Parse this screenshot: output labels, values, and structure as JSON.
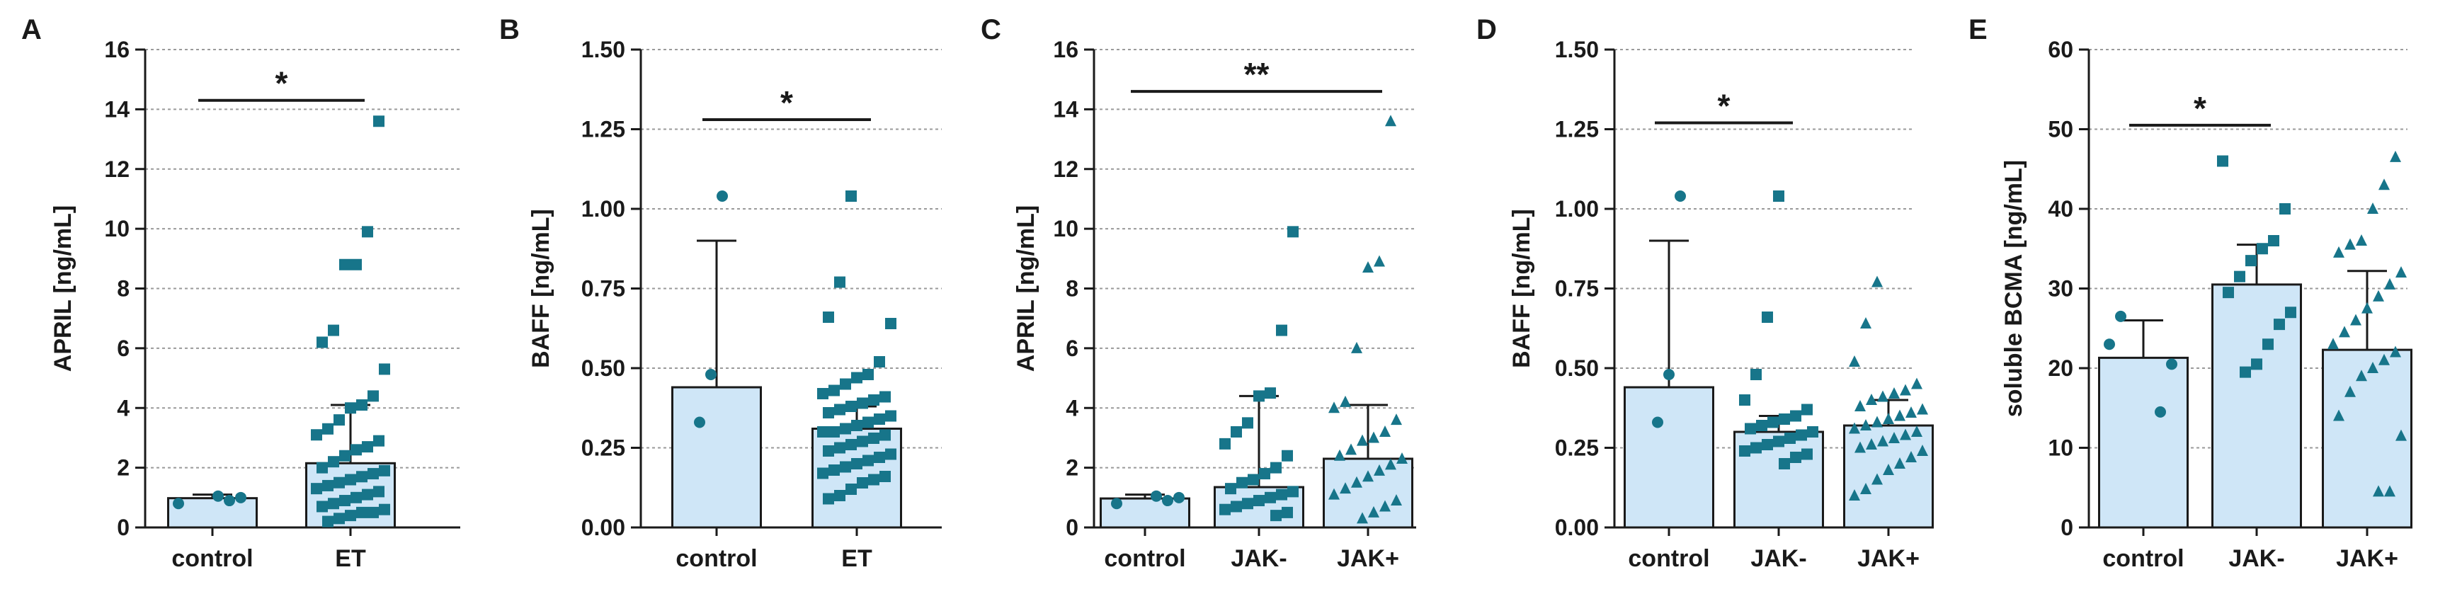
{
  "chart_data": [
    {
      "type": "bar",
      "panel": "A",
      "ylabel": "APRIL [ng/mL]",
      "ylim": [
        0,
        16
      ],
      "yticks": [
        0,
        2,
        4,
        6,
        8,
        10,
        12,
        14,
        16
      ],
      "ytick_labels": [
        "0",
        "2",
        "4",
        "6",
        "8",
        "10",
        "12",
        "14",
        "16"
      ],
      "grid": "dashed horizontal",
      "categories": [
        "control",
        "ET"
      ],
      "values": [
        0.98,
        2.15
      ],
      "error_upper": [
        1.1,
        4.1
      ],
      "markers": [
        "circle",
        "square"
      ],
      "points": [
        [
          0.8,
          1.0,
          0.9,
          1.05
        ],
        [
          13.6,
          9.9,
          8.8,
          8.8,
          6.6,
          6.2,
          5.3,
          4.4,
          4.1,
          4.0,
          3.6,
          3.3,
          3.1,
          2.9,
          2.7,
          2.6,
          2.4,
          2.2,
          2.0,
          1.9,
          1.8,
          1.7,
          1.6,
          1.5,
          1.4,
          1.3,
          1.2,
          1.1,
          1.0,
          0.9,
          0.8,
          0.7,
          0.6,
          0.5,
          0.5,
          0.4,
          0.3,
          0.2
        ]
      ],
      "significance": [
        {
          "label": "*",
          "from": 0,
          "to": 1,
          "y": 14.3
        }
      ]
    },
    {
      "type": "bar",
      "panel": "B",
      "ylabel": "BAFF [ng/mL]",
      "ylim": [
        0,
        1.5
      ],
      "yticks": [
        0,
        0.25,
        0.5,
        0.75,
        1.0,
        1.25,
        1.5
      ],
      "ytick_labels": [
        "0.00",
        "0.25",
        "0.50",
        "0.75",
        "1.00",
        "1.25",
        "1.50"
      ],
      "grid": "dashed horizontal",
      "categories": [
        "control",
        "ET"
      ],
      "values": [
        0.44,
        0.31
      ],
      "error_upper": [
        0.9,
        0.38
      ],
      "markers": [
        "circle",
        "square"
      ],
      "points": [
        [
          1.04,
          0.48,
          0.33
        ],
        [
          1.04,
          0.77,
          0.66,
          0.64,
          0.52,
          0.48,
          0.47,
          0.45,
          0.43,
          0.42,
          0.41,
          0.4,
          0.39,
          0.38,
          0.37,
          0.36,
          0.35,
          0.34,
          0.33,
          0.32,
          0.31,
          0.3,
          0.3,
          0.29,
          0.28,
          0.27,
          0.26,
          0.25,
          0.24,
          0.23,
          0.22,
          0.21,
          0.2,
          0.19,
          0.18,
          0.17,
          0.16,
          0.15,
          0.14,
          0.12,
          0.1,
          0.09
        ]
      ],
      "significance": [
        {
          "label": "*",
          "from": 0,
          "to": 1,
          "y": 1.28
        }
      ]
    },
    {
      "type": "bar",
      "panel": "C",
      "ylabel": "APRIL [ng/mL]",
      "ylim": [
        0,
        16
      ],
      "yticks": [
        0,
        2,
        4,
        6,
        8,
        10,
        12,
        14,
        16
      ],
      "ytick_labels": [
        "0",
        "2",
        "4",
        "6",
        "8",
        "10",
        "12",
        "14",
        "16"
      ],
      "grid": "dashed horizontal",
      "categories": [
        "control",
        "JAK-",
        "JAK+"
      ],
      "values": [
        0.97,
        1.35,
        2.3
      ],
      "error_upper": [
        1.1,
        4.4,
        4.1
      ],
      "markers": [
        "circle",
        "square",
        "triangle"
      ],
      "points": [
        [
          0.8,
          1.0,
          0.9,
          1.05
        ],
        [
          9.9,
          6.6,
          4.5,
          4.4,
          3.5,
          3.2,
          2.8,
          2.4,
          2.0,
          1.8,
          1.6,
          1.5,
          1.3,
          1.2,
          1.1,
          1.0,
          0.9,
          0.8,
          0.7,
          0.6,
          0.5,
          0.4
        ],
        [
          13.6,
          8.9,
          8.7,
          6.0,
          4.2,
          4.0,
          3.6,
          3.2,
          3.0,
          2.9,
          2.6,
          2.4,
          2.3,
          2.1,
          1.9,
          1.7,
          1.5,
          1.3,
          1.1,
          0.9,
          0.7,
          0.5,
          0.3
        ]
      ],
      "significance": [
        {
          "label": "**",
          "from": 0,
          "to": 2,
          "y": 14.6
        }
      ]
    },
    {
      "type": "bar",
      "panel": "D",
      "ylabel": "BAFF [ng/mL]",
      "ylim": [
        0,
        1.5
      ],
      "yticks": [
        0,
        0.25,
        0.5,
        0.75,
        1.0,
        1.25,
        1.5
      ],
      "ytick_labels": [
        "0.00",
        "0.25",
        "0.50",
        "0.75",
        "1.00",
        "1.25",
        "1.50"
      ],
      "grid": "dashed horizontal",
      "categories": [
        "control",
        "JAK-",
        "JAK+"
      ],
      "values": [
        0.44,
        0.3,
        0.32
      ],
      "error_upper": [
        0.9,
        0.35,
        0.4
      ],
      "markers": [
        "circle",
        "square",
        "triangle"
      ],
      "points": [
        [
          1.04,
          0.48,
          0.33
        ],
        [
          1.04,
          0.66,
          0.48,
          0.4,
          0.37,
          0.35,
          0.34,
          0.33,
          0.32,
          0.31,
          0.3,
          0.29,
          0.28,
          0.27,
          0.26,
          0.25,
          0.24,
          0.23,
          0.22,
          0.2
        ],
        [
          0.77,
          0.64,
          0.52,
          0.45,
          0.43,
          0.42,
          0.41,
          0.4,
          0.38,
          0.37,
          0.36,
          0.35,
          0.34,
          0.33,
          0.32,
          0.31,
          0.3,
          0.29,
          0.28,
          0.27,
          0.26,
          0.25,
          0.24,
          0.22,
          0.2,
          0.18,
          0.15,
          0.12,
          0.1
        ]
      ],
      "significance": [
        {
          "label": "*",
          "from": 0,
          "to": 1,
          "y": 1.27
        }
      ]
    },
    {
      "type": "bar",
      "panel": "E",
      "ylabel": "soluble BCMA [ng/mL]",
      "ylim": [
        0,
        60
      ],
      "yticks": [
        0,
        10,
        20,
        30,
        40,
        50,
        60
      ],
      "ytick_labels": [
        "0",
        "10",
        "20",
        "30",
        "40",
        "50",
        "60"
      ],
      "grid": "dashed horizontal",
      "categories": [
        "control",
        "JAK-",
        "JAK+"
      ],
      "values": [
        21.3,
        30.5,
        22.3
      ],
      "error_upper": [
        26.0,
        35.5,
        32.2
      ],
      "markers": [
        "circle",
        "square",
        "triangle"
      ],
      "points": [
        [
          26.5,
          23.0,
          20.5,
          14.5
        ],
        [
          46.0,
          40.0,
          36.0,
          35.0,
          33.5,
          31.5,
          29.5,
          27.0,
          25.5,
          23.0,
          20.5,
          19.5
        ],
        [
          46.5,
          43.0,
          40.0,
          36.0,
          35.5,
          34.5,
          32.0,
          30.5,
          29.0,
          27.5,
          26.0,
          24.5,
          23.0,
          22.0,
          21.0,
          20.0,
          19.0,
          17.0,
          14.0,
          11.5,
          4.5,
          4.5
        ]
      ],
      "significance": [
        {
          "label": "*",
          "from": 0,
          "to": 1,
          "y": 50.5
        }
      ]
    }
  ],
  "colors": {
    "bar_fill": "#cfe6f7",
    "bar_stroke": "#1a1a1a",
    "point": "#17758a",
    "axis": "#1a1a1a",
    "grid": "#9a9a9a"
  }
}
